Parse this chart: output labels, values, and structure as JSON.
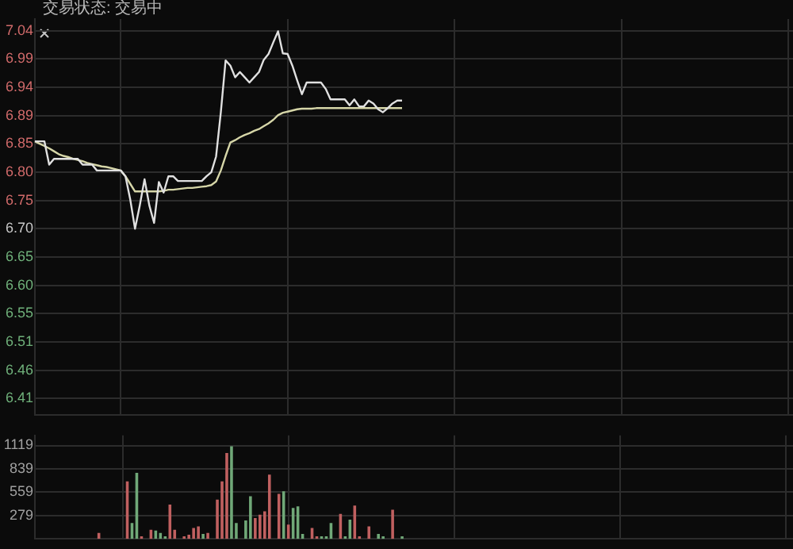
{
  "chart_data": [
    {
      "type": "line",
      "title": "交易状态: 交易中",
      "categories": [
        null,
        null,
        null,
        null,
        null,
        null,
        null,
        null,
        null,
        null,
        null,
        null,
        null,
        null,
        null,
        null,
        null,
        null,
        null,
        null,
        null,
        null,
        null,
        null,
        null,
        null,
        null,
        null,
        null,
        null,
        null,
        null,
        null,
        null,
        null,
        null,
        null,
        null,
        null,
        null,
        null,
        null,
        null,
        null,
        null,
        null,
        null,
        null,
        null,
        null,
        null,
        null,
        null,
        null,
        null,
        null,
        null,
        null,
        null,
        null,
        null,
        null,
        null,
        null,
        null,
        null,
        null,
        null,
        null,
        null,
        null,
        null,
        null,
        null,
        null,
        null,
        null,
        null,
        null,
        null,
        null,
        null,
        null,
        null,
        null,
        null,
        null,
        null,
        null,
        null,
        null,
        null,
        null,
        null,
        null,
        null,
        null,
        null,
        null,
        null,
        null,
        null,
        null,
        null,
        null,
        null,
        null,
        null,
        null,
        null,
        null,
        null,
        null,
        null,
        null,
        null,
        null,
        null,
        null,
        null,
        null,
        null,
        null,
        null,
        null,
        null,
        null,
        null,
        null,
        null,
        null,
        null,
        null,
        null,
        null,
        null,
        null,
        null,
        null,
        null,
        null,
        null,
        null,
        null,
        null,
        null,
        null,
        null,
        null,
        null,
        null,
        null,
        null,
        null,
        null,
        null,
        null,
        null,
        null,
        null
      ],
      "ylim": [
        6.38,
        7.06
      ],
      "yticks": [
        {
          "value": 6.4086,
          "label": "6.41"
        },
        {
          "value": 6.4571,
          "label": "6.46"
        },
        {
          "value": 6.5057,
          "label": "6.51"
        },
        {
          "value": 6.5543,
          "label": "6.55"
        },
        {
          "value": 6.6029,
          "label": "6.60"
        },
        {
          "value": 6.6514,
          "label": "6.65"
        },
        {
          "value": 6.7,
          "label": "6.70"
        },
        {
          "value": 6.7486,
          "label": "6.75"
        },
        {
          "value": 6.7971,
          "label": "6.80"
        },
        {
          "value": 6.8457,
          "label": "6.85"
        },
        {
          "value": 6.8943,
          "label": "6.89"
        },
        {
          "value": 6.9429,
          "label": "6.94"
        },
        {
          "value": 6.9914,
          "label": "6.99"
        },
        {
          "value": 7.04,
          "label": "7.04"
        }
      ],
      "grid": true,
      "tick_labels": "y",
      "marker": "none",
      "line_style": "solid",
      "series": [
        {
          "color": "#e0e0e0",
          "values": [
            6.85,
            6.85,
            6.85,
            6.81,
            6.82,
            6.82,
            6.82,
            6.82,
            6.82,
            6.82,
            6.81,
            6.81,
            6.81,
            6.8,
            6.8,
            6.8,
            6.8,
            6.8,
            6.8,
            6.79,
            6.75,
            6.7,
            6.74,
            6.785,
            6.74,
            6.71,
            6.78,
            6.762,
            6.79,
            6.79,
            6.782,
            6.782,
            6.782,
            6.782,
            6.782,
            6.782,
            6.79,
            6.797,
            6.824,
            6.9,
            6.989,
            6.98,
            6.96,
            6.969,
            6.96,
            6.951,
            6.96,
            6.969,
            6.99,
            7.0,
            7.02,
            7.039,
            7.001,
            7.0,
            6.98,
            6.955,
            6.931,
            6.951,
            6.951,
            6.951,
            6.951,
            6.94,
            6.922,
            6.922,
            6.922,
            6.922,
            6.912,
            6.922,
            6.91,
            6.91,
            6.92,
            6.915,
            6.905,
            6.9,
            6.907,
            6.915,
            6.92,
            6.92,
            null,
            null,
            null,
            null,
            null,
            null,
            null,
            null,
            null,
            null,
            null,
            null,
            null,
            null,
            null,
            null,
            null,
            null,
            null,
            null,
            null,
            null,
            null,
            null,
            null,
            null,
            null,
            null,
            null,
            null,
            null,
            null,
            null,
            null,
            null,
            null,
            null,
            null,
            null,
            null,
            null,
            null,
            null,
            null,
            null,
            null,
            null,
            null,
            null,
            null,
            null,
            null,
            null,
            null,
            null,
            null,
            null,
            null,
            null,
            null,
            null,
            null,
            null,
            null,
            null,
            null,
            null,
            null,
            null,
            null,
            null,
            null,
            null,
            null,
            null,
            null,
            null,
            null,
            null,
            null,
            null,
            null
          ]
        },
        {
          "color": "#d6d6a8",
          "values": [
            6.85,
            6.846,
            6.842,
            6.838,
            6.833,
            6.828,
            6.825,
            6.823,
            6.82,
            6.818,
            6.816,
            6.813,
            6.811,
            6.809,
            6.807,
            6.806,
            6.804,
            6.802,
            6.8,
            6.79,
            6.777,
            6.764,
            6.764,
            6.764,
            6.764,
            6.764,
            6.764,
            6.765,
            6.767,
            6.767,
            6.768,
            6.769,
            6.77,
            6.77,
            6.771,
            6.772,
            6.773,
            6.775,
            6.781,
            6.8,
            6.825,
            6.848,
            6.852,
            6.857,
            6.861,
            6.864,
            6.868,
            6.871,
            6.876,
            6.881,
            6.887,
            6.895,
            6.899,
            6.901,
            6.903,
            6.905,
            6.906,
            6.906,
            6.906,
            6.907,
            6.907,
            6.907,
            6.907,
            6.907,
            6.907,
            6.907,
            6.907,
            6.907,
            6.907,
            6.907,
            6.907,
            6.907,
            6.907,
            6.907,
            6.907,
            6.907,
            6.907,
            6.907,
            null,
            null,
            null,
            null,
            null,
            null,
            null,
            null,
            null,
            null,
            null,
            null,
            null,
            null,
            null,
            null,
            null,
            null,
            null,
            null,
            null,
            null,
            null,
            null,
            null,
            null,
            null,
            null,
            null,
            null,
            null,
            null,
            null,
            null,
            null,
            null,
            null,
            null,
            null,
            null,
            null,
            null,
            null,
            null,
            null,
            null,
            null,
            null,
            null,
            null,
            null,
            null,
            null,
            null,
            null,
            null,
            null,
            null,
            null,
            null,
            null,
            null,
            null,
            null,
            null,
            null,
            null,
            null,
            null,
            null,
            null,
            null,
            null,
            null,
            null,
            null,
            null,
            null,
            null,
            null,
            null,
            null
          ]
        }
      ]
    },
    {
      "type": "bar",
      "categories": [
        null,
        null,
        null,
        null,
        null,
        null,
        null,
        null,
        null,
        null,
        null,
        null,
        null,
        null,
        null,
        null,
        null,
        null,
        null,
        null,
        null,
        null,
        null,
        null,
        null,
        null,
        null,
        null,
        null,
        null,
        null,
        null,
        null,
        null,
        null,
        null,
        null,
        null,
        null,
        null,
        null,
        null,
        null,
        null,
        null,
        null,
        null,
        null,
        null,
        null,
        null,
        null,
        null,
        null,
        null,
        null,
        null,
        null,
        null,
        null,
        null,
        null,
        null,
        null,
        null,
        null,
        null,
        null,
        null,
        null,
        null,
        null,
        null,
        null,
        null,
        null,
        null,
        null,
        null,
        null,
        null,
        null,
        null,
        null,
        null,
        null,
        null,
        null,
        null,
        null,
        null,
        null,
        null,
        null,
        null,
        null,
        null,
        null,
        null,
        null,
        null,
        null,
        null,
        null,
        null,
        null,
        null,
        null,
        null,
        null,
        null,
        null,
        null,
        null,
        null,
        null,
        null,
        null,
        null,
        null,
        null,
        null,
        null,
        null,
        null,
        null,
        null,
        null,
        null,
        null,
        null,
        null,
        null,
        null,
        null,
        null,
        null,
        null,
        null,
        null,
        null,
        null,
        null,
        null,
        null,
        null,
        null,
        null,
        null,
        null,
        null,
        null,
        null,
        null,
        null,
        null,
        null,
        null,
        null,
        null
      ],
      "ylim": [
        0,
        1240
      ],
      "yticks": [
        279,
        559,
        839,
        1119
      ],
      "grid": true,
      "tick_labels": "y",
      "values": [
        null,
        null,
        null,
        null,
        null,
        null,
        null,
        null,
        null,
        null,
        null,
        null,
        null,
        70,
        null,
        null,
        null,
        null,
        null,
        690,
        190,
        790,
        30,
        null,
        110,
        100,
        70,
        30,
        410,
        110,
        null,
        30,
        50,
        130,
        150,
        60,
        70,
        null,
        470,
        690,
        1030,
        1110,
        190,
        null,
        220,
        510,
        250,
        290,
        330,
        770,
        null,
        540,
        570,
        170,
        370,
        390,
        60,
        null,
        130,
        30,
        30,
        30,
        190,
        null,
        300,
        30,
        230,
        400,
        30,
        null,
        150,
        null,
        60,
        30,
        null,
        350,
        null,
        30,
        null,
        null,
        null,
        null,
        null,
        null,
        null,
        null,
        null,
        null,
        null,
        null,
        null,
        null,
        null,
        null,
        null,
        null,
        null,
        null,
        null,
        null,
        null,
        null,
        null,
        null,
        null,
        null,
        null,
        null,
        null,
        null,
        null,
        null,
        null,
        null,
        null,
        null,
        null,
        null,
        null,
        null,
        null,
        null,
        null,
        null,
        null,
        null,
        null,
        null,
        null,
        null,
        null,
        null,
        null,
        null,
        null,
        null,
        null,
        null,
        null,
        null,
        null,
        null,
        null,
        null,
        null,
        null,
        null,
        null,
        null,
        null,
        null,
        null,
        null,
        null,
        null,
        null,
        null,
        null,
        null,
        null
      ],
      "colors": [
        null,
        null,
        null,
        null,
        null,
        null,
        null,
        null,
        null,
        null,
        null,
        null,
        null,
        "#c06060",
        null,
        null,
        null,
        null,
        null,
        "#c06060",
        "#70a878",
        "#70a878",
        "#c06060",
        null,
        "#c06060",
        "#70a878",
        "#70a878",
        "#70a878",
        "#c06060",
        "#c06060",
        null,
        "#c06060",
        "#c06060",
        "#c06060",
        "#c06060",
        "#70a878",
        "#c06060",
        null,
        "#c06060",
        "#c06060",
        "#c06060",
        "#70a878",
        "#70a878",
        null,
        "#70a878",
        "#70a878",
        "#c06060",
        "#c06060",
        "#c06060",
        "#c06060",
        null,
        "#c06060",
        "#70a878",
        "#c06060",
        "#70a878",
        "#70a878",
        "#70a878",
        null,
        "#c06060",
        "#c06060",
        "#70a878",
        "#70a878",
        "#70a878",
        null,
        "#c06060",
        "#70a878",
        "#70a878",
        "#c06060",
        "#c06060",
        null,
        "#c06060",
        null,
        "#70a878",
        "#70a878",
        null,
        "#c06060",
        null,
        "#70a878",
        null,
        null,
        null,
        null,
        null,
        null,
        null,
        null,
        null,
        null,
        null,
        null,
        null,
        null,
        null,
        null,
        null,
        null,
        null,
        null,
        null,
        null,
        null,
        null,
        null,
        null,
        null,
        null,
        null,
        null,
        null,
        null,
        null,
        null,
        null,
        null,
        null,
        null,
        null,
        null,
        null,
        null,
        null,
        null,
        null,
        null,
        null,
        null,
        null,
        null,
        null,
        null,
        null,
        null,
        null,
        null,
        null,
        null,
        null,
        null,
        null,
        null,
        null,
        null,
        null,
        null,
        null,
        null,
        null,
        null,
        null,
        null,
        null,
        null,
        null,
        null,
        null,
        null,
        null,
        null,
        null,
        null
      ]
    }
  ]
}
